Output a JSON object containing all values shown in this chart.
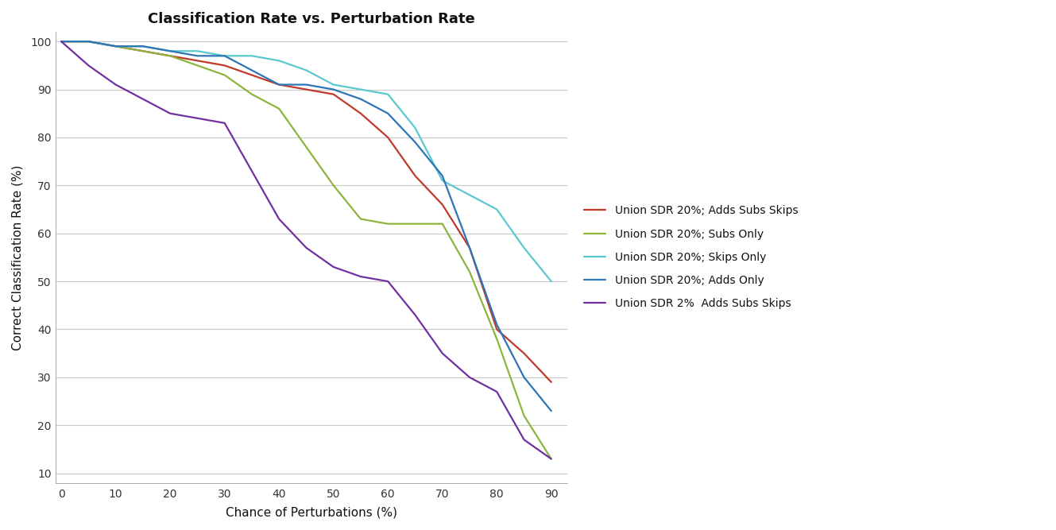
{
  "title": "Classification Rate vs. Perturbation Rate",
  "xlabel": "Chance of Perturbations (%)",
  "ylabel": "Correct Classification Rate (%)",
  "xlim": [
    -1,
    93
  ],
  "ylim": [
    8,
    102
  ],
  "xticks": [
    0,
    10,
    20,
    30,
    40,
    50,
    60,
    70,
    80,
    90
  ],
  "yticks": [
    10,
    20,
    30,
    40,
    50,
    60,
    70,
    80,
    90,
    100
  ],
  "background_color": "#ffffff",
  "grid_color": "#c8c8c8",
  "series": [
    {
      "label": "Union SDR 20%; Adds Subs Skips",
      "color": "#c0392b",
      "x": [
        0,
        5,
        10,
        15,
        20,
        25,
        30,
        35,
        40,
        45,
        50,
        55,
        60,
        65,
        70,
        75,
        80,
        85,
        90
      ],
      "y": [
        100,
        100,
        99,
        98,
        97,
        96,
        95,
        93,
        91,
        90,
        89,
        85,
        80,
        72,
        66,
        57,
        40,
        35,
        29
      ]
    },
    {
      "label": "Union SDR 20%; Subs Only",
      "color": "#8db53c",
      "x": [
        0,
        5,
        10,
        15,
        20,
        25,
        30,
        35,
        40,
        45,
        50,
        55,
        60,
        65,
        70,
        75,
        80,
        85,
        90
      ],
      "y": [
        100,
        100,
        99,
        98,
        97,
        95,
        93,
        89,
        86,
        78,
        70,
        63,
        62,
        62,
        62,
        52,
        38,
        22,
        13
      ]
    },
    {
      "label": "Union SDR 20%; Skips Only",
      "color": "#5bc8d0",
      "x": [
        0,
        5,
        10,
        15,
        20,
        25,
        30,
        35,
        40,
        45,
        50,
        55,
        60,
        65,
        70,
        75,
        80,
        85,
        90
      ],
      "y": [
        100,
        100,
        99,
        99,
        98,
        98,
        97,
        97,
        96,
        94,
        91,
        90,
        89,
        82,
        71,
        68,
        65,
        57,
        50
      ]
    },
    {
      "label": "Union SDR 20%; Adds Only",
      "color": "#2e75b6",
      "x": [
        0,
        5,
        10,
        15,
        20,
        25,
        30,
        35,
        40,
        45,
        50,
        55,
        60,
        65,
        70,
        75,
        80,
        85,
        90
      ],
      "y": [
        100,
        100,
        99,
        99,
        98,
        97,
        97,
        94,
        91,
        91,
        90,
        88,
        85,
        79,
        72,
        57,
        41,
        30,
        23
      ]
    },
    {
      "label": "Union SDR 2%  Adds Subs Skips",
      "color": "#7030a0",
      "x": [
        0,
        5,
        10,
        15,
        20,
        25,
        30,
        35,
        40,
        45,
        50,
        55,
        60,
        65,
        70,
        75,
        80,
        85,
        90
      ],
      "y": [
        100,
        95,
        91,
        88,
        85,
        84,
        83,
        73,
        63,
        57,
        53,
        51,
        50,
        43,
        35,
        30,
        27,
        17,
        13
      ]
    }
  ]
}
